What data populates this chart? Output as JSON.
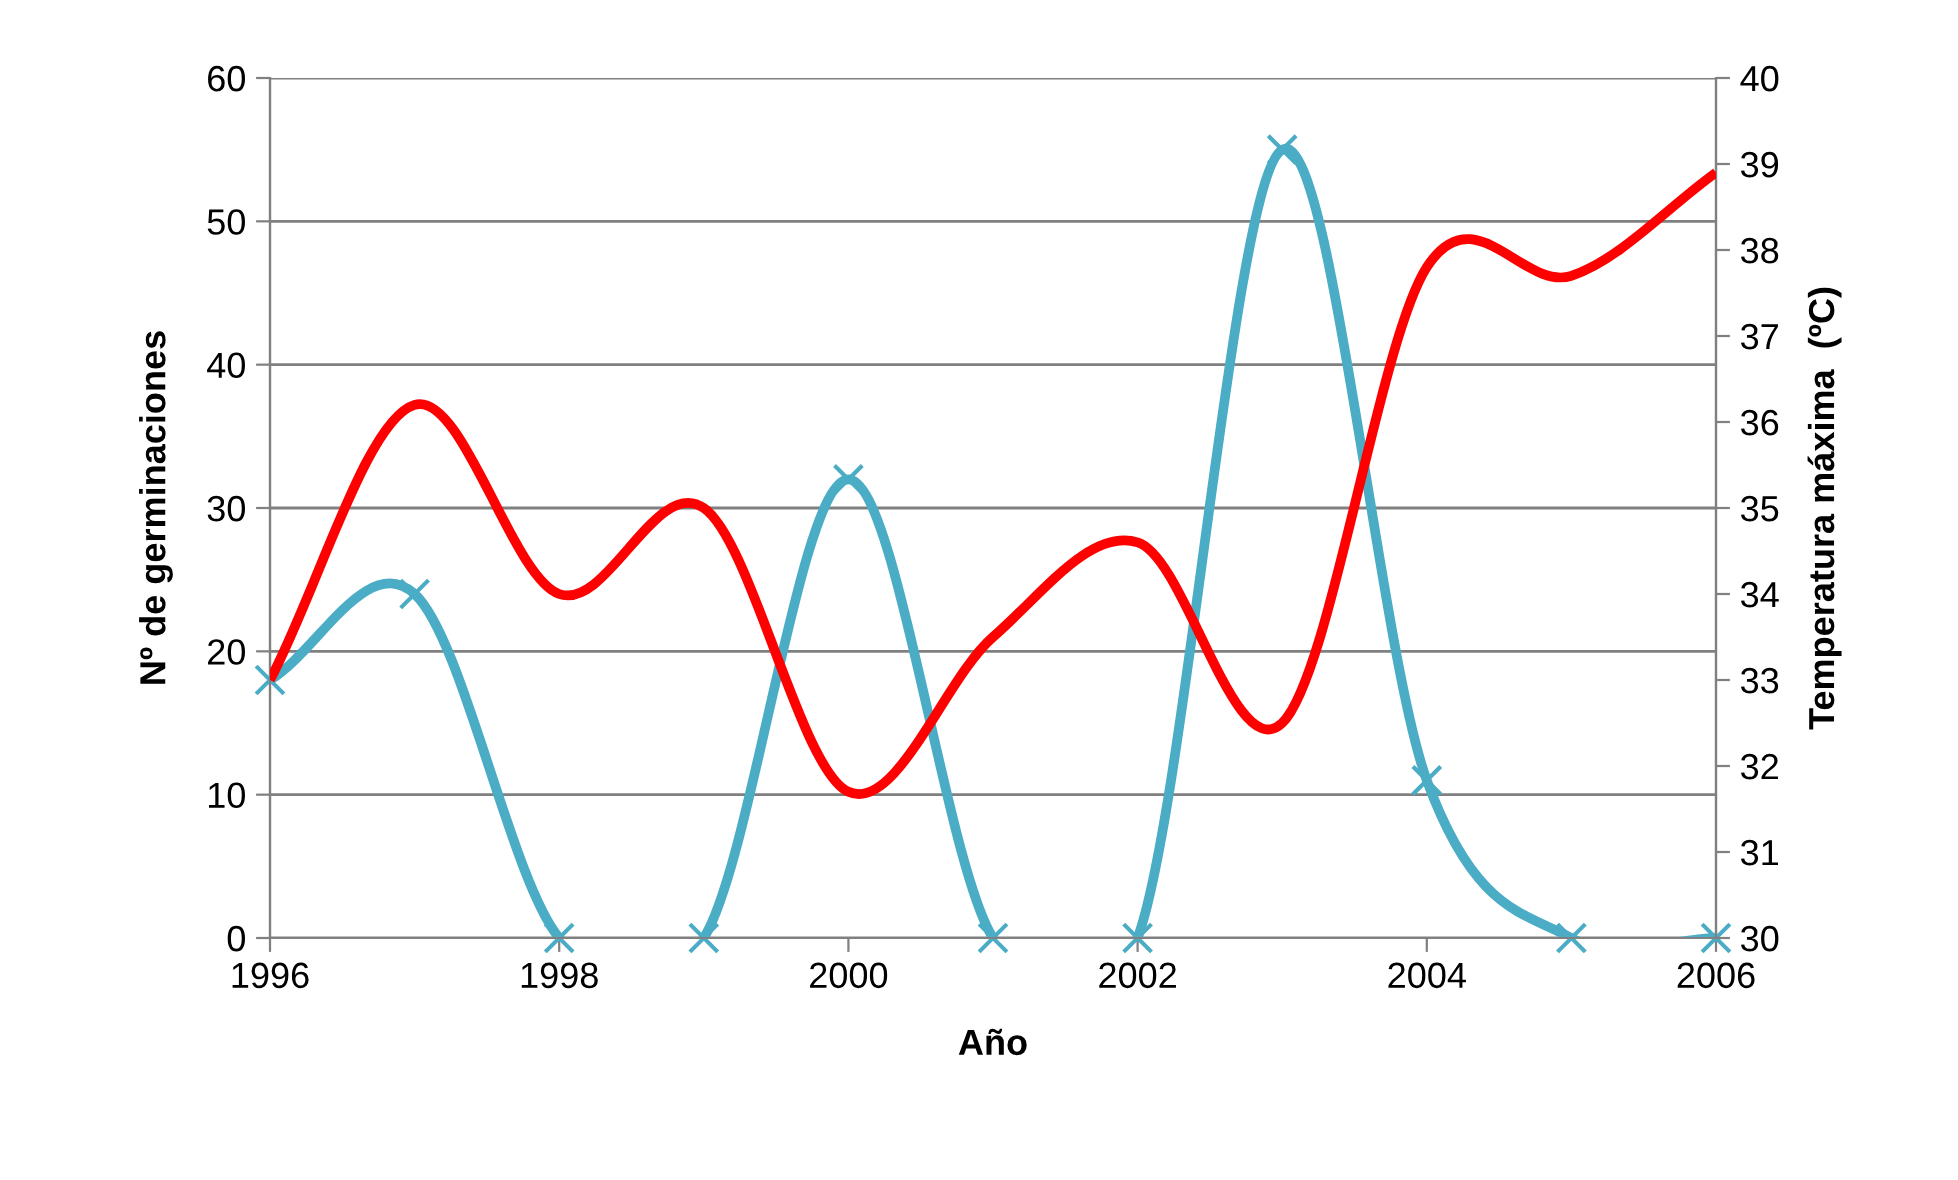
{
  "chart_data": {
    "type": "line",
    "xlabel": "Año",
    "ylabel": "Nº de germinaciones",
    "y2label": "Temperatura máxima  (ºC)",
    "x": [
      1996,
      1997,
      1998,
      1999,
      2000,
      2001,
      2002,
      2003,
      2004,
      2005,
      2006
    ],
    "xlim": [
      1996,
      2006
    ],
    "xticks": [
      1996,
      1998,
      2000,
      2002,
      2004,
      2006
    ],
    "ylim": [
      0,
      60
    ],
    "yticks": [
      0,
      10,
      20,
      30,
      40,
      50,
      60
    ],
    "y2lim": [
      30,
      40
    ],
    "y2ticks": [
      30,
      31,
      32,
      33,
      34,
      35,
      36,
      37,
      38,
      39,
      40
    ],
    "grid": "y",
    "legend": false,
    "series": [
      {
        "color": "#4bacc6",
        "marker": "cross",
        "values": [
          18,
          24,
          0,
          0,
          32,
          0,
          0,
          55,
          11,
          0,
          0
        ]
      },
      {
        "color": "#ff0000",
        "marker": "none",
        "axis": "y2",
        "values": [
          33.0,
          36.2,
          34.0,
          35.0,
          31.7,
          33.5,
          34.6,
          32.5,
          37.8,
          37.7,
          38.9
        ]
      }
    ]
  }
}
